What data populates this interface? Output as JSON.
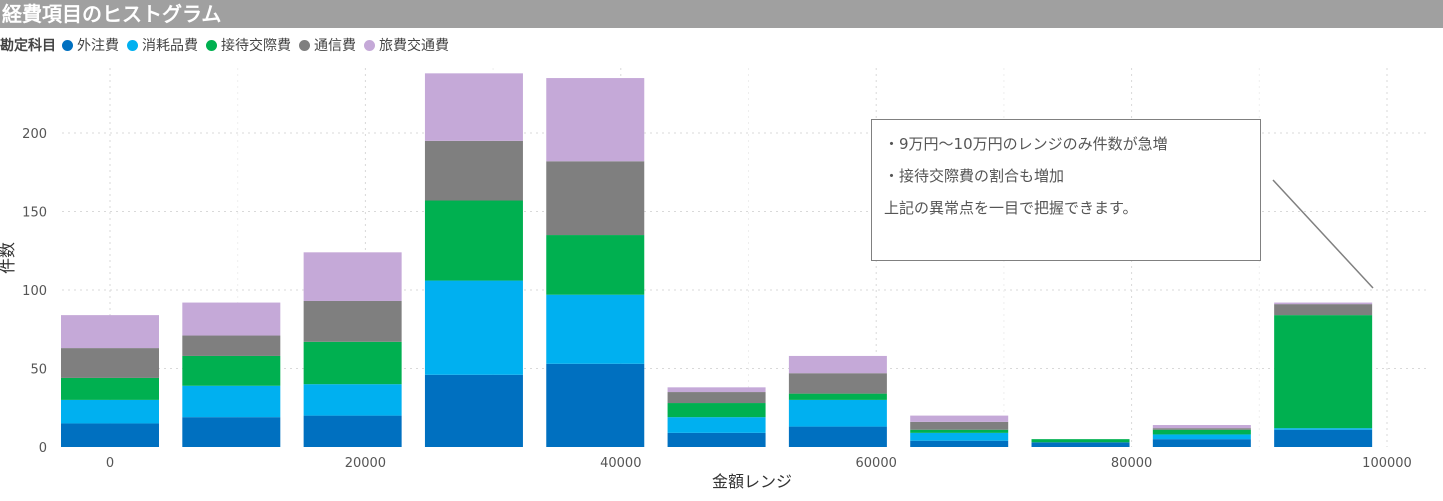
{
  "title": "経費項目のヒストグラム",
  "legend": {
    "title": "勘定科目",
    "items": [
      {
        "label": "外注費",
        "color": "#0070c0"
      },
      {
        "label": "消耗品費",
        "color": "#00b0f0"
      },
      {
        "label": "接待交際費",
        "color": "#00b050"
      },
      {
        "label": "通信費",
        "color": "#7f7f7f"
      },
      {
        "label": "旅費交通費",
        "color": "#c5a9d8"
      }
    ]
  },
  "annotation": {
    "lines": [
      "・9万円〜10万円のレンジのみ件数が急増",
      "・接待交際費の割合も増加",
      "上記の異常点を一目で把握できます。"
    ]
  },
  "chart_data": {
    "type": "bar",
    "stacked": true,
    "title": "経費項目のヒストグラム",
    "xlabel": "金額レンジ",
    "ylabel": "件数",
    "ylim": [
      0,
      240
    ],
    "xlim": [
      -5000,
      105000
    ],
    "x_ticks": [
      0,
      20000,
      40000,
      60000,
      80000,
      100000
    ],
    "y_ticks": [
      0,
      50,
      100,
      150,
      200
    ],
    "grid": true,
    "legend_position": "top-left",
    "categories": [
      0,
      9500,
      19000,
      28500,
      38000,
      47500,
      57000,
      66500,
      76000,
      85500,
      95000
    ],
    "series": [
      {
        "name": "外注費",
        "color": "#0070c0",
        "values": [
          15,
          19,
          20,
          46,
          53,
          9,
          13,
          4,
          3,
          5,
          11
        ]
      },
      {
        "name": "消耗品費",
        "color": "#00b0f0",
        "values": [
          15,
          20,
          20,
          60,
          44,
          10,
          17,
          5,
          0,
          3,
          1
        ]
      },
      {
        "name": "接待交際費",
        "color": "#00b050",
        "values": [
          14,
          19,
          27,
          51,
          38,
          9,
          4,
          2,
          2,
          3,
          72
        ]
      },
      {
        "name": "通信費",
        "color": "#7f7f7f",
        "values": [
          19,
          13,
          26,
          38,
          47,
          7,
          13,
          5,
          0,
          1,
          7
        ]
      },
      {
        "name": "旅費交通費",
        "color": "#c5a9d8",
        "values": [
          21,
          21,
          31,
          43,
          53,
          3,
          11,
          4,
          0,
          2,
          1
        ]
      }
    ]
  }
}
